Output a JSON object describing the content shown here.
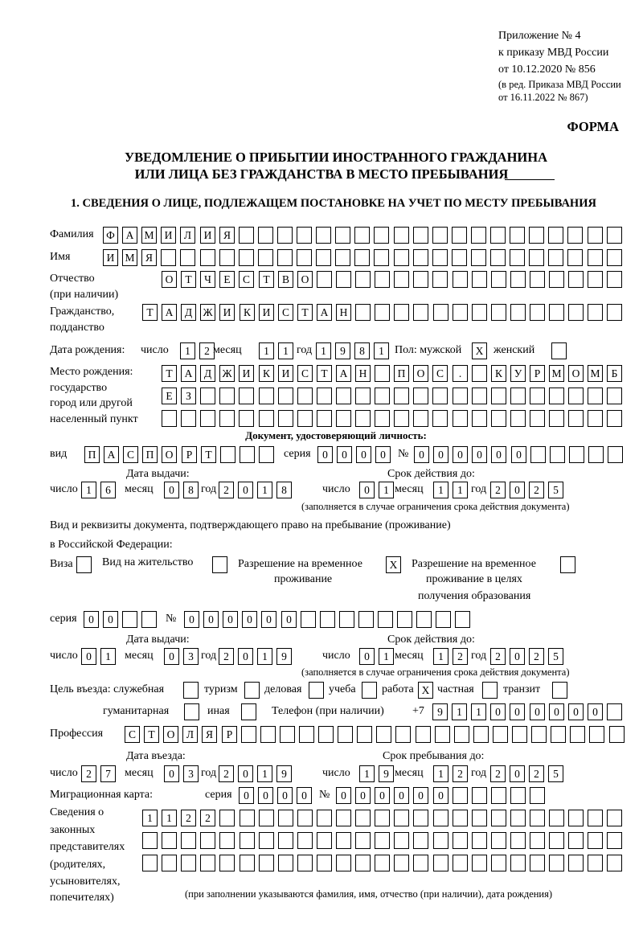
{
  "header": {
    "appendix": "Приложение № 4",
    "order": "к приказу МВД России",
    "order_date": "от 10.12.2020 № 856",
    "edition_1": "(в ред. Приказа МВД России",
    "edition_2": "от 16.11.2022 № 867)",
    "form_label": "ФОРМА",
    "title_1": "УВЕДОМЛЕНИЕ О ПРИБЫТИИ ИНОСТРАННОГО ГРАЖДАНИНА",
    "title_2": "ИЛИ ЛИЦА БЕЗ ГРАЖДАНСТВА В МЕСТО ПРЕБЫВАНИЯ",
    "section_1": "1. СВЕДЕНИЯ О ЛИЦЕ, ПОДЛЕЖАЩЕМ ПОСТАНОВКЕ НА УЧЕТ ПО МЕСТУ ПРЕБЫВАНИЯ"
  },
  "labels": {
    "surname": "Фамилия",
    "name": "Имя",
    "patronymic_1": "Отчество",
    "patronymic_2": "(при наличии)",
    "citizenship_1": "Гражданство,",
    "citizenship_2": "подданство",
    "birth_date": "Дата рождения:",
    "day": "число",
    "month": "месяц",
    "year": "год",
    "sex_male": "Пол: мужской",
    "sex_female": "женский",
    "birthplace_1": "Место рождения:",
    "birthplace_2": "государство",
    "birthplace_3": "город или другой",
    "birthplace_4": "населенный пункт",
    "id_doc_heading": "Документ, удостоверяющий личность:",
    "kind": "вид",
    "series": "серия",
    "number": "№",
    "issue_date": "Дата выдачи:",
    "valid_until": "Срок действия до:",
    "validity_note": "(заполняется в случае ограничения срока действия документа)",
    "stay_doc_1": "Вид и реквизиты документа, подтверждающего право на пребывание (проживание)",
    "stay_doc_2": "в Российской Федерации:",
    "visa": "Виза",
    "residence_permit": "Вид на жительство",
    "temp_residence_1": "Разрешение на временное",
    "temp_residence_2": "проживание",
    "temp_edu_1": "Разрешение на временное",
    "temp_edu_2": "проживание в целях",
    "temp_edu_3": "получения образования",
    "purpose": "Цель въезда: служебная",
    "tourism": "туризм",
    "business": "деловая",
    "study": "учеба",
    "work": "работа",
    "private": "частная",
    "transit": "транзит",
    "humanitarian": "гуманитарная",
    "other": "иная",
    "phone": "Телефон (при наличии)",
    "phone_prefix": "+7",
    "profession": "Профессия",
    "entry_date": "Дата въезда:",
    "stay_until": "Срок пребывания до:",
    "migration_card": "Миграционная карта:",
    "reps_1": "Сведения о",
    "reps_2": "законных",
    "reps_3": "представителях",
    "reps_4": "(родителях,",
    "reps_5": "усыновителях,",
    "reps_6": "попечителях)",
    "reps_note": "(при заполнении указываются фамилия, имя, отчество (при наличии), дата рождения)"
  },
  "values": {
    "surname": "ФАМИЛИЯ",
    "name": "ИМЯ",
    "patronymic": "ОТЧЕСТВО",
    "citizenship": "ТАДЖИКИСТАН",
    "birth_day": "12",
    "birth_month": "11",
    "birth_year": "1981",
    "sex_male": "X",
    "sex_female": "",
    "birthplace_1": "ТАДЖИКИСТАН ПОС. КУРМОМБ",
    "birthplace_2": "ЕЗ",
    "birthplace_3": "",
    "id_kind": "ПАСПОРТ",
    "id_series": "0000",
    "id_number": "000000",
    "id_issue_day": "16",
    "id_issue_month": "08",
    "id_issue_year": "2018",
    "id_valid_day": "01",
    "id_valid_month": "11",
    "id_valid_year": "2025",
    "visa": "",
    "residence_permit": "",
    "temp_residence": "X",
    "temp_edu": "",
    "stay_series": "00",
    "stay_number": "000000",
    "stay_issue_day": "01",
    "stay_issue_month": "03",
    "stay_issue_year": "2019",
    "stay_valid_day": "01",
    "stay_valid_month": "12",
    "stay_valid_year": "2025",
    "purpose_service": "",
    "purpose_tourism": "",
    "purpose_business": "",
    "purpose_study": "",
    "purpose_work": "X",
    "purpose_private": "",
    "purpose_transit": "",
    "purpose_humanitarian": "",
    "purpose_other": "",
    "phone": "911000000",
    "profession": "СТОЛЯР",
    "entry_day": "27",
    "entry_month": "03",
    "entry_year": "2019",
    "stay_until_day": "19",
    "stay_until_month": "12",
    "stay_until_year": "2025",
    "mig_series": "0000",
    "mig_number": "000000",
    "reps_1": "1122",
    "reps_2": "",
    "reps_3": ""
  }
}
